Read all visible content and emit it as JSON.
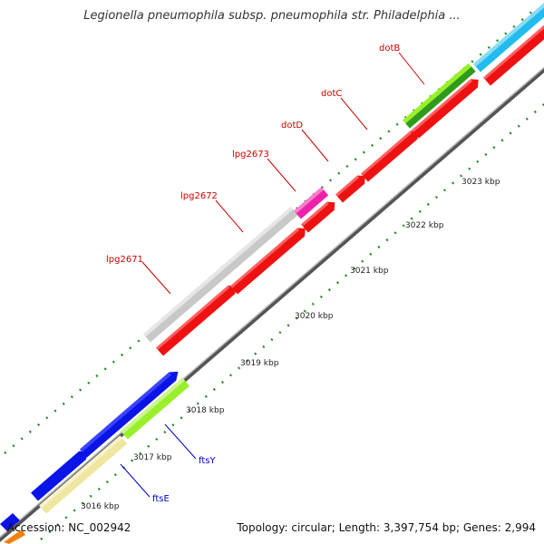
{
  "title": "Legionella pneumophila subsp. pneumophila str. Philadelphia ...",
  "footer": {
    "accession": "Accession: NC_002942",
    "summary": "Topology: circular; Length: 3,397,754 bp; Genes: 2,994"
  },
  "colors": {
    "red_gene": "#ee1111",
    "grey_gene": "#c8c8c8",
    "magenta_gene": "#ee22aa",
    "blue_gene": "#0a14e6",
    "lime_gene": "#99f02a",
    "cream_gene": "#efe6a0",
    "cyan_gene": "#22bbee",
    "green_dark": "#2f9a1c",
    "label_red": "#cc0000",
    "label_blue": "#0000cc",
    "tick_green": "#2a8a2a"
  },
  "gene_labels": [
    {
      "name": "dotB",
      "color": "red"
    },
    {
      "name": "dotC",
      "color": "red"
    },
    {
      "name": "dotD",
      "color": "red"
    },
    {
      "name": "lpg2673",
      "color": "red"
    },
    {
      "name": "lpg2672",
      "color": "red"
    },
    {
      "name": "lpg2671",
      "color": "red"
    },
    {
      "name": "ftsY",
      "color": "blue"
    },
    {
      "name": "ftsE",
      "color": "blue"
    }
  ],
  "scale_labels": [
    "3023 kbp",
    "3022 kbp",
    "3021 kbp",
    "3020 kbp",
    "3019 kbp",
    "3018 kbp",
    "3017 kbp",
    "3016 kbp"
  ]
}
